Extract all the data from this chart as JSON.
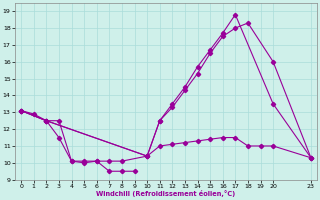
{
  "xlabel": "Windchill (Refroidissement éolien,°C)",
  "bg_color": "#cff0ea",
  "grid_color": "#aaddda",
  "line_color": "#990099",
  "xlim": [
    -0.5,
    23.5
  ],
  "ylim": [
    9,
    19.5
  ],
  "xticks": [
    0,
    1,
    2,
    3,
    4,
    5,
    6,
    7,
    8,
    9,
    10,
    11,
    12,
    13,
    14,
    15,
    16,
    17,
    18,
    19,
    20,
    23
  ],
  "yticks": [
    9,
    10,
    11,
    12,
    13,
    14,
    15,
    16,
    17,
    18,
    19
  ],
  "line1_x": [
    0,
    1,
    2,
    3,
    4,
    5,
    6,
    7,
    8,
    9
  ],
  "line1_y": [
    13.1,
    12.9,
    12.5,
    12.5,
    10.1,
    10.0,
    10.1,
    9.5,
    9.5,
    9.5
  ],
  "line2_x": [
    0,
    2,
    3,
    4,
    5,
    6,
    7,
    8,
    10,
    11,
    12,
    13,
    14,
    15,
    16,
    17,
    18,
    19,
    20,
    23
  ],
  "line2_y": [
    13.1,
    12.5,
    11.5,
    10.1,
    10.1,
    10.1,
    10.1,
    10.1,
    10.4,
    11.0,
    11.1,
    11.2,
    11.3,
    11.4,
    11.5,
    11.5,
    11.0,
    11.0,
    11.0,
    10.3
  ],
  "line3_x": [
    0,
    2,
    10,
    11,
    12,
    13,
    14,
    15,
    16,
    17,
    18,
    20,
    23
  ],
  "line3_y": [
    13.1,
    12.5,
    10.4,
    12.5,
    13.3,
    14.3,
    15.3,
    16.5,
    17.5,
    18.0,
    18.3,
    16.0,
    10.3
  ],
  "line4_x": [
    0,
    2,
    10,
    11,
    12,
    13,
    14,
    15,
    16,
    17,
    20,
    23
  ],
  "line4_y": [
    13.1,
    12.5,
    10.4,
    12.5,
    13.5,
    14.5,
    15.7,
    16.7,
    17.7,
    18.8,
    13.5,
    10.3
  ]
}
